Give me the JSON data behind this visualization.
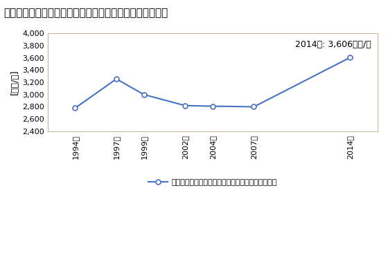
{
  "title": "機械器具小売業の従業者一人当たり年間商品販売額の推移",
  "ylabel": "[万円/人]",
  "annotation": "2014年: 3,606万円/人",
  "legend_label": "機械器具小売業の従業者一人当たり年間商品販売額",
  "years": [
    1994,
    1997,
    1999,
    2002,
    2004,
    2007,
    2014
  ],
  "year_labels": [
    "1994年",
    "1997年",
    "1999年",
    "2002年",
    "2004年",
    "2007年",
    "2014年"
  ],
  "values": [
    2780,
    3255,
    3000,
    2820,
    2810,
    2800,
    3606
  ],
  "ylim": [
    2400,
    4000
  ],
  "yticks": [
    2400,
    2600,
    2800,
    3000,
    3200,
    3400,
    3600,
    3800,
    4000
  ],
  "line_color": "#4472C4",
  "marker": "o",
  "marker_size": 5,
  "marker_facecolor": "#FFFFFF",
  "background_color": "#FFFFFF",
  "plot_bg_color": "#FFFFFF",
  "spine_color": "#C8B89A",
  "title_fontsize": 11,
  "label_fontsize": 9,
  "annotation_fontsize": 9,
  "tick_fontsize": 8,
  "legend_fontsize": 8
}
